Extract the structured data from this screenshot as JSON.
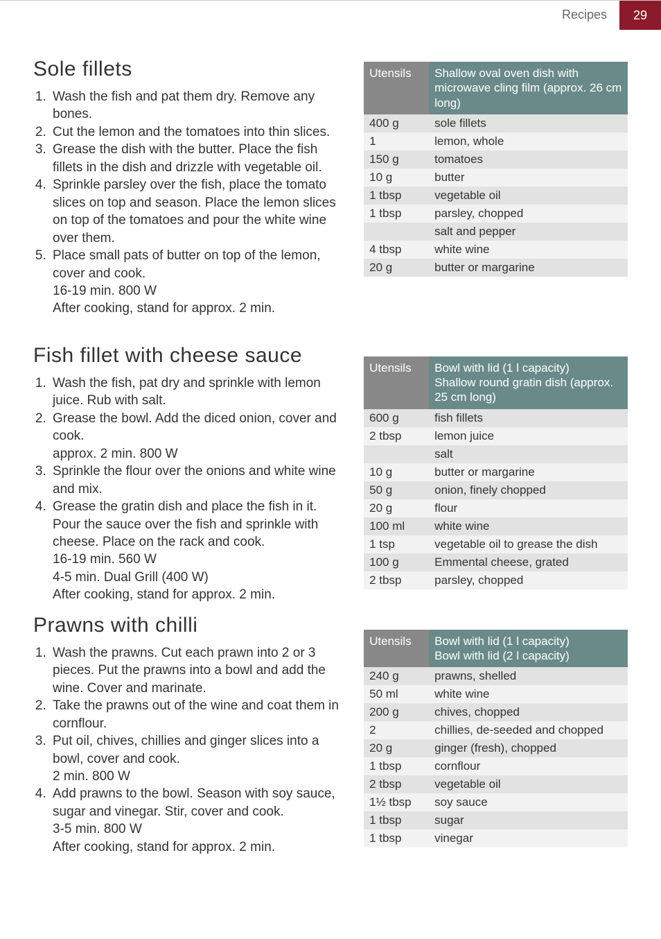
{
  "page_header": {
    "section": "Recipes",
    "page_number": "29"
  },
  "colors": {
    "header_box": "#8b1a2b",
    "th_label_bg": "#888888",
    "th_desc_bg": "#6a8a8a",
    "stripe_a": "#e2e2e2",
    "stripe_b": "#f2f2f2"
  },
  "recipe1": {
    "title": "Sole fillets",
    "steps": [
      "Wash the fish and pat them dry. Remove any bones.",
      "Cut the lemon and the tomatoes into thin slices.",
      "Grease the dish with the butter. Place the fish fillets in the dish and drizzle with vegetable oil.",
      "Sprinkle parsley over the fish, place the tomato slices on top and season. Place the lemon slices on top of the tomatoes and pour the white wine over them.",
      "Place small pats of butter on top of the lemon, cover and cook.\n16-19 min.    800 W\nAfter cooking, stand for approx. 2 min."
    ],
    "utensils_label": "Utensils",
    "utensils_desc": "Shallow oval oven dish with microwave cling film (approx. 26 cm long)",
    "rows": [
      {
        "q": "400 g",
        "d": "sole fillets"
      },
      {
        "q": "1",
        "d": "lemon, whole"
      },
      {
        "q": "150 g",
        "d": "tomatoes"
      },
      {
        "q": "10 g",
        "d": "butter"
      },
      {
        "q": "1 tbsp",
        "d": "vegetable oil"
      },
      {
        "q": "1 tbsp",
        "d": "parsley, chopped"
      },
      {
        "q": "",
        "d": "salt and pepper"
      },
      {
        "q": "4 tbsp",
        "d": "white wine"
      },
      {
        "q": "20 g",
        "d": "butter or margarine"
      }
    ]
  },
  "recipe2": {
    "title": "Fish fillet with cheese sauce",
    "steps": [
      "Wash the fish, pat dry and sprinkle with lemon juice. Rub with salt.",
      "Grease the bowl. Add the diced onion, cover and cook.\napprox. 2 min.    800 W",
      "Sprinkle the flour over the onions and white wine and mix.",
      "Grease the gratin dish and place the fish in it. Pour the sauce over the fish and sprinkle with cheese. Place on the rack and cook.\n16-19 min.  560 W\n4-5 min.      Dual Grill (400 W)\nAfter cooking, stand for approx. 2 min."
    ],
    "utensils_label": "Utensils",
    "utensils_desc": "Bowl with lid (1 l capacity)\nShallow round gratin dish (approx. 25 cm long)",
    "rows": [
      {
        "q": "600 g",
        "d": "fish fillets"
      },
      {
        "q": "2 tbsp",
        "d": "lemon juice"
      },
      {
        "q": "",
        "d": "salt"
      },
      {
        "q": "10 g",
        "d": "butter or margarine"
      },
      {
        "q": "50 g",
        "d": "onion, finely chopped"
      },
      {
        "q": "20 g",
        "d": "flour"
      },
      {
        "q": "100 ml",
        "d": "white wine"
      },
      {
        "q": "1 tsp",
        "d": "vegetable oil to grease the dish"
      },
      {
        "q": "100 g",
        "d": "Emmental cheese, grated"
      },
      {
        "q": "2 tbsp",
        "d": "parsley, chopped"
      }
    ]
  },
  "recipe3": {
    "title": "Prawns with chilli",
    "steps": [
      "Wash the prawns. Cut each prawn into 2 or 3 pieces. Put the prawns into a bowl and add the wine. Cover and marinate.",
      "Take the prawns out of the wine and coat them in cornflour.",
      "Put oil, chives, chillies and ginger slices into a bowl, cover and cook.\n2 min.    800 W",
      "Add prawns to the bowl. Season with soy sauce, sugar and vinegar. Stir, cover and cook.\n3-5 min.    800 W\nAfter cooking, stand for approx. 2 min."
    ],
    "utensils_label": "Utensils",
    "utensils_desc": "Bowl with lid (1 l capacity)\nBowl with lid (2 l capacity)",
    "rows": [
      {
        "q": "240 g",
        "d": "prawns, shelled"
      },
      {
        "q": "50 ml",
        "d": "white wine"
      },
      {
        "q": "200 g",
        "d": "chives, chopped"
      },
      {
        "q": "2",
        "d": "chillies, de-seeded and chopped"
      },
      {
        "q": "20 g",
        "d": "ginger (fresh), chopped"
      },
      {
        "q": "1 tbsp",
        "d": "cornflour"
      },
      {
        "q": "2 tbsp",
        "d": "vegetable oil"
      },
      {
        "q": "1½ tbsp",
        "d": "soy sauce"
      },
      {
        "q": "1 tbsp",
        "d": "sugar"
      },
      {
        "q": "1 tbsp",
        "d": "vinegar"
      }
    ]
  }
}
